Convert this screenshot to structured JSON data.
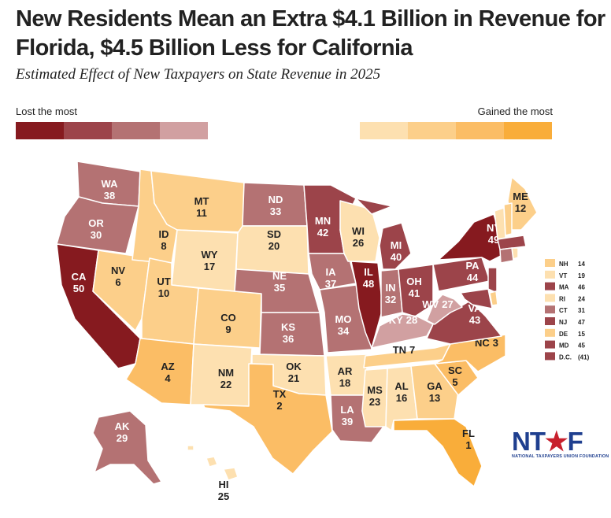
{
  "title": "New Residents Mean an Extra $4.1 Billion in Revenue for Florida, $4.5 Billion Less for California",
  "subtitle": "Estimated Effect of New Taxpayers on State Revenue in 2025",
  "legend": {
    "lost_label": "Lost the most",
    "gained_label": "Gained the most",
    "lost_colors": [
      "#861a1f",
      "#9c444a",
      "#b47273",
      "#d1a0a1"
    ],
    "gained_colors": [
      "#fde0b0",
      "#fccf8a",
      "#fbbd65",
      "#f9ad3a"
    ]
  },
  "states": [
    {
      "abbr": "WA",
      "rank": 38
    },
    {
      "abbr": "OR",
      "rank": 30
    },
    {
      "abbr": "CA",
      "rank": 50
    },
    {
      "abbr": "NV",
      "rank": 6
    },
    {
      "abbr": "ID",
      "rank": 8
    },
    {
      "abbr": "MT",
      "rank": 11
    },
    {
      "abbr": "WY",
      "rank": 17
    },
    {
      "abbr": "UT",
      "rank": 10
    },
    {
      "abbr": "CO",
      "rank": 9
    },
    {
      "abbr": "AZ",
      "rank": 4
    },
    {
      "abbr": "NM",
      "rank": 22
    },
    {
      "abbr": "ND",
      "rank": 33
    },
    {
      "abbr": "SD",
      "rank": 20
    },
    {
      "abbr": "NE",
      "rank": 35
    },
    {
      "abbr": "KS",
      "rank": 36
    },
    {
      "abbr": "OK",
      "rank": 21
    },
    {
      "abbr": "TX",
      "rank": 2
    },
    {
      "abbr": "MN",
      "rank": 42
    },
    {
      "abbr": "IA",
      "rank": 37
    },
    {
      "abbr": "MO",
      "rank": 34
    },
    {
      "abbr": "AR",
      "rank": 18
    },
    {
      "abbr": "LA",
      "rank": 39
    },
    {
      "abbr": "WI",
      "rank": 26
    },
    {
      "abbr": "IL",
      "rank": 48
    },
    {
      "abbr": "MI",
      "rank": 40
    },
    {
      "abbr": "IN",
      "rank": 32
    },
    {
      "abbr": "OH",
      "rank": 41
    },
    {
      "abbr": "KY",
      "rank": 28
    },
    {
      "abbr": "TN",
      "rank": 7
    },
    {
      "abbr": "MS",
      "rank": 23
    },
    {
      "abbr": "AL",
      "rank": 16
    },
    {
      "abbr": "GA",
      "rank": 13
    },
    {
      "abbr": "FL",
      "rank": 1
    },
    {
      "abbr": "SC",
      "rank": 5
    },
    {
      "abbr": "NC",
      "rank": 3
    },
    {
      "abbr": "VA",
      "rank": 43
    },
    {
      "abbr": "WV",
      "rank": 27
    },
    {
      "abbr": "PA",
      "rank": 44
    },
    {
      "abbr": "NY",
      "rank": 49
    },
    {
      "abbr": "ME",
      "rank": 12
    },
    {
      "abbr": "AK",
      "rank": 29
    },
    {
      "abbr": "HI",
      "rank": 25
    },
    {
      "abbr": "NH",
      "rank": 14
    },
    {
      "abbr": "VT",
      "rank": 19
    },
    {
      "abbr": "MA",
      "rank": 46
    },
    {
      "abbr": "RI",
      "rank": 24
    },
    {
      "abbr": "CT",
      "rank": 31
    },
    {
      "abbr": "NJ",
      "rank": 47
    },
    {
      "abbr": "DE",
      "rank": 15
    },
    {
      "abbr": "MD",
      "rank": 45
    }
  ],
  "small_states_legend": [
    {
      "abbr": "NH",
      "value": "14"
    },
    {
      "abbr": "VT",
      "value": "19"
    },
    {
      "abbr": "MA",
      "value": "46"
    },
    {
      "abbr": "RI",
      "value": "24"
    },
    {
      "abbr": "CT",
      "value": "31"
    },
    {
      "abbr": "NJ",
      "value": "47"
    },
    {
      "abbr": "DE",
      "value": "15"
    },
    {
      "abbr": "MD",
      "value": "45"
    },
    {
      "abbr": "D.C.",
      "value": "(41)"
    }
  ],
  "logo": {
    "text": "NTUF",
    "name": "NATIONAL TAXPAYERS UNION FOUNDATION"
  }
}
